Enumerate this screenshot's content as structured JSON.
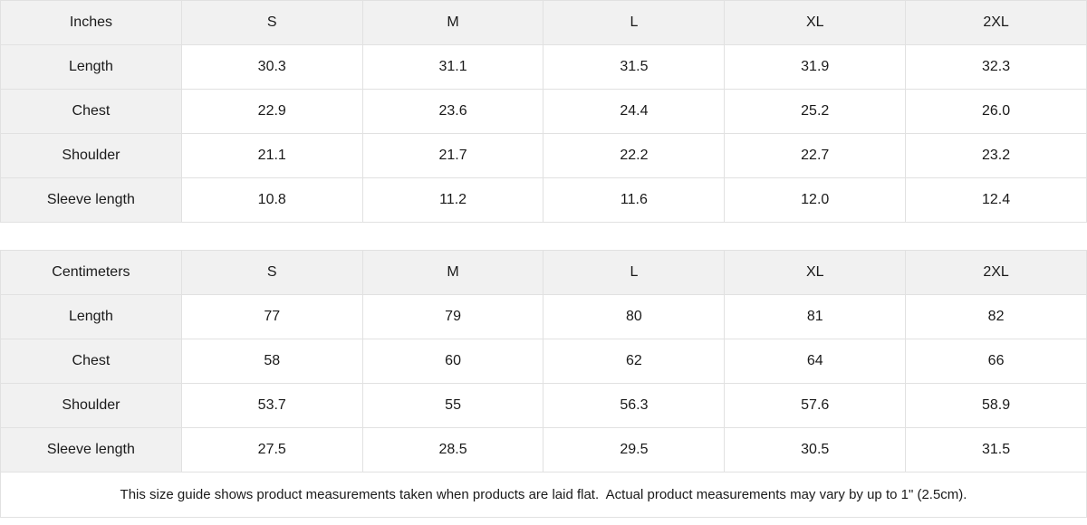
{
  "tables": [
    {
      "unit_label": "Inches",
      "sizes": [
        "S",
        "M",
        "L",
        "XL",
        "2XL"
      ],
      "rows": [
        {
          "label": "Length",
          "values": [
            "30.3",
            "31.1",
            "31.5",
            "31.9",
            "32.3"
          ]
        },
        {
          "label": "Chest",
          "values": [
            "22.9",
            "23.6",
            "24.4",
            "25.2",
            "26.0"
          ]
        },
        {
          "label": "Shoulder",
          "values": [
            "21.1",
            "21.7",
            "22.2",
            "22.7",
            "23.2"
          ]
        },
        {
          "label": "Sleeve length",
          "values": [
            "10.8",
            "11.2",
            "11.6",
            "12.0",
            "12.4"
          ]
        }
      ]
    },
    {
      "unit_label": "Centimeters",
      "sizes": [
        "S",
        "M",
        "L",
        "XL",
        "2XL"
      ],
      "rows": [
        {
          "label": "Length",
          "values": [
            "77",
            "79",
            "80",
            "81",
            "82"
          ]
        },
        {
          "label": "Chest",
          "values": [
            "58",
            "60",
            "62",
            "64",
            "66"
          ]
        },
        {
          "label": "Shoulder",
          "values": [
            "53.7",
            "55",
            "56.3",
            "57.6",
            "58.9"
          ]
        },
        {
          "label": "Sleeve length",
          "values": [
            "27.5",
            "28.5",
            "29.5",
            "30.5",
            "31.5"
          ]
        }
      ]
    }
  ],
  "footer": {
    "note": "This size guide shows product measurements taken when products are laid flat.  Actual product measurements may vary by up to 1\" (2.5cm)."
  },
  "colors": {
    "header_bg": "#f1f1f1",
    "border": "#e1e1e1",
    "text": "#1a1a1a"
  }
}
